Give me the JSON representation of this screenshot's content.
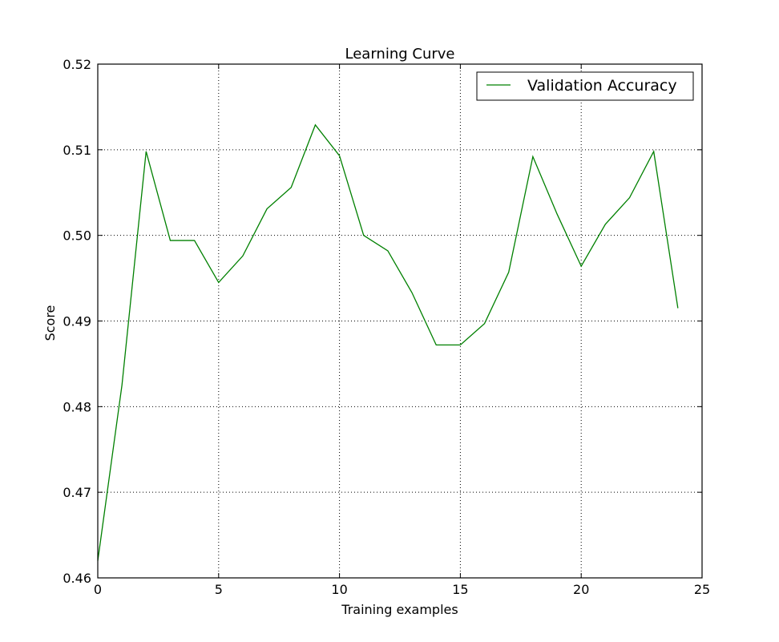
{
  "chart_data": {
    "type": "line",
    "title": "Learning Curve",
    "xlabel": "Training examples",
    "ylabel": "Score",
    "xlim": [
      0,
      25
    ],
    "ylim": [
      0.46,
      0.52
    ],
    "xticks": [
      0,
      5,
      10,
      15,
      20,
      25
    ],
    "xtick_labels": [
      "0",
      "5",
      "10",
      "15",
      "20",
      "25"
    ],
    "yticks": [
      0.46,
      0.47,
      0.48,
      0.49,
      0.5,
      0.51,
      0.52
    ],
    "ytick_labels": [
      "0.46",
      "0.47",
      "0.48",
      "0.49",
      "0.50",
      "0.51",
      "0.52"
    ],
    "grid": true,
    "legend_position": "top-right",
    "series": [
      {
        "name": "Validation Accuracy",
        "color": "#008000",
        "x": [
          0,
          1,
          2,
          3,
          4,
          5,
          6,
          7,
          8,
          9,
          10,
          11,
          12,
          13,
          14,
          15,
          16,
          17,
          18,
          19,
          20,
          21,
          22,
          23,
          24
        ],
        "values": [
          0.462,
          0.4825,
          0.5098,
          0.4994,
          0.4994,
          0.4945,
          0.4976,
          0.5031,
          0.5056,
          0.5129,
          0.5093,
          0.5,
          0.4982,
          0.4933,
          0.4872,
          0.4872,
          0.4897,
          0.4957,
          0.5092,
          0.5025,
          0.4964,
          0.5013,
          0.5044,
          0.5098,
          0.4915
        ]
      }
    ]
  }
}
